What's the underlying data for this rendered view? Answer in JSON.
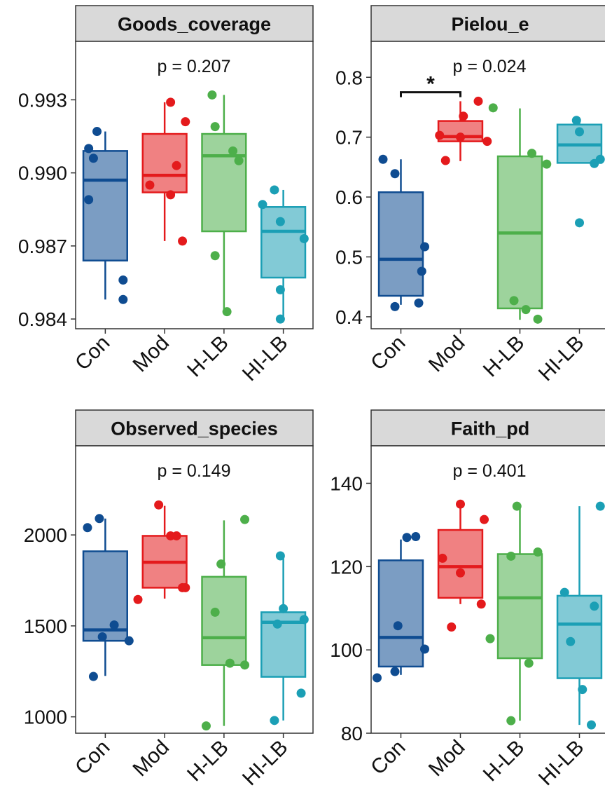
{
  "colors": {
    "Con": "#0f4c91",
    "Mod": "#e41a1c",
    "H-LB": "#4daf4a",
    "HI-LB": "#1b9fb5",
    "strip": "#d9d9d9",
    "frame": "#333333"
  },
  "chart_data": [
    {
      "type": "box",
      "title": "Goods_coverage",
      "categories": [
        "Con",
        "Mod",
        "H-LB",
        "HI-LB"
      ],
      "ylim": [
        0.9836,
        0.9954
      ],
      "yticks": [
        0.984,
        0.987,
        0.99,
        0.993
      ],
      "ytick_labels": [
        "0.984",
        "0.987",
        "0.990",
        "0.993"
      ],
      "p_label": "p = 0.207",
      "boxes": [
        {
          "group": "Con",
          "min": 0.9848,
          "q1": 0.9864,
          "median": 0.9897,
          "q3": 0.9909,
          "max": 0.9917
        },
        {
          "group": "Mod",
          "min": 0.9872,
          "q1": 0.9892,
          "median": 0.9899,
          "q3": 0.9916,
          "max": 0.9929
        },
        {
          "group": "H-LB",
          "min": 0.9843,
          "q1": 0.9876,
          "median": 0.9907,
          "q3": 0.9916,
          "max": 0.9932
        },
        {
          "group": "HI-LB",
          "min": 0.984,
          "q1": 0.9857,
          "median": 0.9876,
          "q3": 0.9886,
          "max": 0.9893
        }
      ],
      "points": [
        [
          {
            "dx": -0.28,
            "y": 0.991
          },
          {
            "dx": -0.2,
            "y": 0.9906
          },
          {
            "dx": -0.14,
            "y": 0.9917
          },
          {
            "dx": -0.28,
            "y": 0.9889
          },
          {
            "dx": 0.3,
            "y": 0.9856
          },
          {
            "dx": 0.3,
            "y": 0.9848
          }
        ],
        [
          {
            "dx": 0.1,
            "y": 0.9929
          },
          {
            "dx": 0.35,
            "y": 0.9921
          },
          {
            "dx": -0.25,
            "y": 0.9895
          },
          {
            "dx": 0.2,
            "y": 0.9903
          },
          {
            "dx": 0.1,
            "y": 0.9891
          },
          {
            "dx": 0.3,
            "y": 0.9872
          }
        ],
        [
          {
            "dx": -0.2,
            "y": 0.9932
          },
          {
            "dx": -0.15,
            "y": 0.9919
          },
          {
            "dx": 0.15,
            "y": 0.9909
          },
          {
            "dx": 0.25,
            "y": 0.9905
          },
          {
            "dx": -0.15,
            "y": 0.9866
          },
          {
            "dx": 0.05,
            "y": 0.9843
          }
        ],
        [
          {
            "dx": -0.15,
            "y": 0.9893
          },
          {
            "dx": -0.35,
            "y": 0.9887
          },
          {
            "dx": -0.05,
            "y": 0.988
          },
          {
            "dx": 0.35,
            "y": 0.9873
          },
          {
            "dx": -0.05,
            "y": 0.9852
          },
          {
            "dx": -0.05,
            "y": 0.984
          }
        ]
      ]
    },
    {
      "type": "box",
      "title": "Pielou_e",
      "categories": [
        "Con",
        "Mod",
        "H-LB",
        "HI-LB"
      ],
      "ylim": [
        0.38,
        0.86
      ],
      "yticks": [
        0.4,
        0.5,
        0.6,
        0.7,
        0.8
      ],
      "ytick_labels": [
        "0.4",
        "0.5",
        "0.6",
        "0.7",
        "0.8"
      ],
      "p_label": "p = 0.024",
      "significance": {
        "from": "Con",
        "to": "Mod",
        "y": 0.775,
        "label": "*"
      },
      "boxes": [
        {
          "group": "Con",
          "min": 0.42,
          "q1": 0.435,
          "median": 0.496,
          "q3": 0.608,
          "max": 0.663
        },
        {
          "group": "Mod",
          "min": 0.66,
          "q1": 0.693,
          "median": 0.701,
          "q3": 0.727,
          "max": 0.76
        },
        {
          "group": "H-LB",
          "min": 0.395,
          "q1": 0.414,
          "median": 0.54,
          "q3": 0.668,
          "max": 0.748
        },
        {
          "group": "HI-LB",
          "min": 0.657,
          "q1": 0.657,
          "median": 0.687,
          "q3": 0.721,
          "max": 0.728
        }
      ],
      "points": [
        [
          {
            "dx": -0.3,
            "y": 0.663
          },
          {
            "dx": -0.1,
            "y": 0.639
          },
          {
            "dx": 0.4,
            "y": 0.517
          },
          {
            "dx": 0.35,
            "y": 0.476
          },
          {
            "dx": -0.1,
            "y": 0.417
          },
          {
            "dx": 0.3,
            "y": 0.423
          }
        ],
        [
          {
            "dx": 0.3,
            "y": 0.76
          },
          {
            "dx": 0.05,
            "y": 0.735
          },
          {
            "dx": -0.35,
            "y": 0.703
          },
          {
            "dx": 0.0,
            "y": 0.7
          },
          {
            "dx": 0.45,
            "y": 0.693
          },
          {
            "dx": -0.25,
            "y": 0.661
          }
        ],
        [
          {
            "dx": -0.45,
            "y": 0.749
          },
          {
            "dx": 0.2,
            "y": 0.673
          },
          {
            "dx": 0.45,
            "y": 0.655
          },
          {
            "dx": -0.1,
            "y": 0.427
          },
          {
            "dx": 0.1,
            "y": 0.412
          },
          {
            "dx": 0.3,
            "y": 0.396
          }
        ],
        [
          {
            "dx": -0.05,
            "y": 0.728
          },
          {
            "dx": -0.0,
            "y": 0.709
          },
          {
            "dx": 0.35,
            "y": 0.663
          },
          {
            "dx": 0.25,
            "y": 0.656
          },
          {
            "dx": 0.0,
            "y": 0.557
          }
        ]
      ]
    },
    {
      "type": "box",
      "title": "Observed_species",
      "categories": [
        "Con",
        "Mod",
        "H-LB",
        "HI-LB"
      ],
      "ylim": [
        910,
        2490
      ],
      "yticks": [
        1000,
        1500,
        2000
      ],
      "ytick_labels": [
        "1000",
        "1500",
        "2000"
      ],
      "p_label": "p = 0.149",
      "boxes": [
        {
          "group": "Con",
          "min": 1225,
          "q1": 1418,
          "median": 1478,
          "q3": 1910,
          "max": 2090
        },
        {
          "group": "Mod",
          "min": 1650,
          "q1": 1710,
          "median": 1850,
          "q3": 1995,
          "max": 2160
        },
        {
          "group": "H-LB",
          "min": 950,
          "q1": 1285,
          "median": 1435,
          "q3": 1770,
          "max": 2080
        },
        {
          "group": "HI-LB",
          "min": 980,
          "q1": 1220,
          "median": 1520,
          "q3": 1575,
          "max": 1885
        }
      ],
      "points": [
        [
          {
            "dx": -0.3,
            "y": 2040
          },
          {
            "dx": -0.1,
            "y": 2090
          },
          {
            "dx": 0.15,
            "y": 1505
          },
          {
            "dx": -0.05,
            "y": 1440
          },
          {
            "dx": 0.4,
            "y": 1418
          },
          {
            "dx": -0.2,
            "y": 1222
          }
        ],
        [
          {
            "dx": -0.1,
            "y": 2165
          },
          {
            "dx": 0.2,
            "y": 1995
          },
          {
            "dx": 0.1,
            "y": 1995
          },
          {
            "dx": 0.3,
            "y": 1710
          },
          {
            "dx": 0.35,
            "y": 1710
          },
          {
            "dx": -0.45,
            "y": 1645
          }
        ],
        [
          {
            "dx": 0.35,
            "y": 2085
          },
          {
            "dx": -0.05,
            "y": 1840
          },
          {
            "dx": -0.15,
            "y": 1575
          },
          {
            "dx": 0.1,
            "y": 1295
          },
          {
            "dx": 0.35,
            "y": 1285
          },
          {
            "dx": -0.3,
            "y": 950
          }
        ],
        [
          {
            "dx": -0.05,
            "y": 1885
          },
          {
            "dx": 0.0,
            "y": 1595
          },
          {
            "dx": 0.35,
            "y": 1535
          },
          {
            "dx": -0.1,
            "y": 1510
          },
          {
            "dx": 0.3,
            "y": 1130
          },
          {
            "dx": -0.15,
            "y": 980
          }
        ]
      ]
    },
    {
      "type": "box",
      "title": "Faith_pd",
      "categories": [
        "Con",
        "Mod",
        "H-LB",
        "HI-LB"
      ],
      "ylim": [
        80,
        149
      ],
      "yticks": [
        80,
        100,
        120,
        140
      ],
      "ytick_labels": [
        "80",
        "100",
        "120",
        "140"
      ],
      "p_label": "p = 0.401",
      "boxes": [
        {
          "group": "Con",
          "min": 94,
          "q1": 96,
          "median": 103,
          "q3": 121.5,
          "max": 126.5
        },
        {
          "group": "Mod",
          "min": 111,
          "q1": 112.5,
          "median": 120,
          "q3": 128.8,
          "max": 135
        },
        {
          "group": "H-LB",
          "min": 83,
          "q1": 98,
          "median": 112.5,
          "q3": 123,
          "max": 134.5
        },
        {
          "group": "HI-LB",
          "min": 82,
          "q1": 93.2,
          "median": 106.2,
          "q3": 113,
          "max": 134.5
        }
      ],
      "points": [
        [
          {
            "dx": 0.1,
            "y": 127
          },
          {
            "dx": 0.25,
            "y": 127.2
          },
          {
            "dx": -0.05,
            "y": 105.8
          },
          {
            "dx": 0.4,
            "y": 100.2
          },
          {
            "dx": -0.1,
            "y": 94.8
          },
          {
            "dx": -0.4,
            "y": 93.3
          }
        ],
        [
          {
            "dx": 0.0,
            "y": 135
          },
          {
            "dx": 0.4,
            "y": 131.3
          },
          {
            "dx": -0.3,
            "y": 122
          },
          {
            "dx": 0.0,
            "y": 118.5
          },
          {
            "dx": 0.35,
            "y": 111
          },
          {
            "dx": -0.15,
            "y": 105.5
          }
        ],
        [
          {
            "dx": -0.05,
            "y": 134.5
          },
          {
            "dx": 0.3,
            "y": 123.5
          },
          {
            "dx": -0.15,
            "y": 122.5
          },
          {
            "dx": -0.5,
            "y": 102.7
          },
          {
            "dx": 0.15,
            "y": 96.8
          },
          {
            "dx": -0.15,
            "y": 83
          }
        ],
        [
          {
            "dx": 0.35,
            "y": 134.5
          },
          {
            "dx": -0.25,
            "y": 113.8
          },
          {
            "dx": 0.25,
            "y": 110.5
          },
          {
            "dx": -0.15,
            "y": 102
          },
          {
            "dx": 0.05,
            "y": 90.5
          },
          {
            "dx": 0.2,
            "y": 82
          }
        ]
      ]
    }
  ]
}
